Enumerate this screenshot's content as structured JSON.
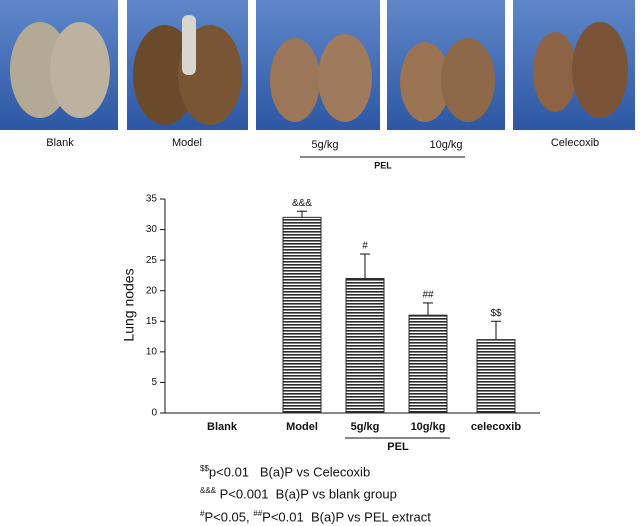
{
  "photos": {
    "labels": [
      "Blank",
      "Model",
      "5g/kg",
      "10g/kg",
      "Celecoxib"
    ],
    "group_label": "PEL"
  },
  "chart_data": {
    "type": "bar",
    "y_label": "Lung nodes",
    "categories": [
      "Blank",
      "Model",
      "5g/kg",
      "10g/kg",
      "celecoxib"
    ],
    "values": [
      0,
      32,
      22,
      16,
      12
    ],
    "errors": [
      null,
      1,
      4,
      2,
      3
    ],
    "annotations": [
      null,
      "&&&",
      "#",
      "##",
      "$$"
    ],
    "group_label": "PEL",
    "color": "#2a2a2a",
    "ylim": [
      0,
      35
    ],
    "yticks": [
      0,
      5,
      10,
      15,
      20,
      25,
      30,
      35
    ]
  },
  "footnotes": [
    [
      {
        "text": "$$",
        "sup": true
      },
      {
        "text": "p<0.01   B(a)P vs Celecoxib"
      }
    ],
    [
      {
        "text": "&&&",
        "sup": true
      },
      {
        "text": " P<0.001  B(a)P vs blank group"
      }
    ],
    [
      {
        "text": "#",
        "sup": true
      },
      {
        "text": "P<0.05, "
      },
      {
        "text": "##",
        "sup": true
      },
      {
        "text": "P<0.01  B(a)P vs PEL extract"
      }
    ]
  ]
}
